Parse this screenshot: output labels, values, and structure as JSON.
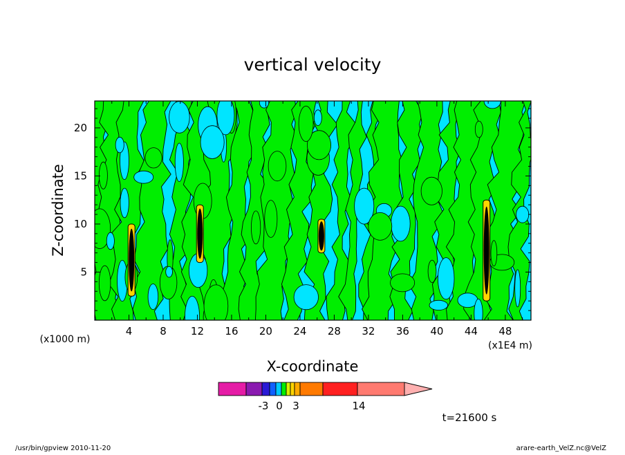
{
  "colors": {
    "positive_weak": "#00ee00",
    "negative_weak": "#00e5ff",
    "outline": "#000000",
    "colorbar": [
      "#e51ca6",
      "#8a1ab0",
      "#2a1ad6",
      "#1060ff",
      "#00c8ff",
      "#00ee00",
      "#d8f000",
      "#ffd400",
      "#ffaa00",
      "#ff7a00",
      "#ff2020",
      "#ff7a70",
      "#ffb0b0"
    ]
  },
  "chart_data": {
    "type": "heatmap",
    "title": "vertical velocity",
    "xlabel": "X-coordinate",
    "ylabel": "Z-coordinate",
    "x_unit_left": "(x1000 m)",
    "x_unit_right": "(x1E4 m)",
    "xlim": [
      0,
      51
    ],
    "ylim": [
      0,
      22.8
    ],
    "x_ticks": [
      "4",
      "8",
      "12",
      "16",
      "20",
      "24",
      "28",
      "32",
      "36",
      "40",
      "44",
      "48"
    ],
    "y_ticks": [
      "5",
      "10",
      "15",
      "20"
    ],
    "colorbar_labels": [
      "-3",
      "0",
      "3",
      "14"
    ],
    "time_label": "t=21600 s",
    "footer_left": "/usr/bin/gpview   2010-11-20",
    "footer_right": "arare-earth_VelZ.nc@VelZ"
  }
}
